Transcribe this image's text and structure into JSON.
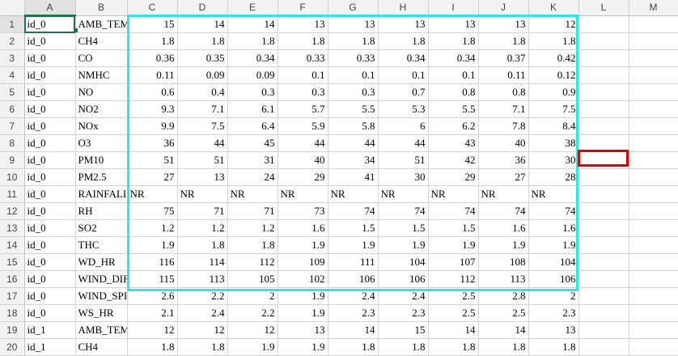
{
  "columns": [
    "A",
    "B",
    "C",
    "D",
    "E",
    "F",
    "G",
    "H",
    "I",
    "J",
    "K",
    "L",
    "M"
  ],
  "active_cell": "A1",
  "rows": [
    {
      "n": "1",
      "id": "id_0",
      "item": "AMB_TEM",
      "v": [
        "15",
        "14",
        "14",
        "13",
        "13",
        "13",
        "13",
        "13",
        "12"
      ]
    },
    {
      "n": "2",
      "id": "id_0",
      "item": "CH4",
      "v": [
        "1.8",
        "1.8",
        "1.8",
        "1.8",
        "1.8",
        "1.8",
        "1.8",
        "1.8",
        "1.8"
      ]
    },
    {
      "n": "3",
      "id": "id_0",
      "item": "CO",
      "v": [
        "0.36",
        "0.35",
        "0.34",
        "0.33",
        "0.33",
        "0.34",
        "0.34",
        "0.37",
        "0.42"
      ]
    },
    {
      "n": "4",
      "id": "id_0",
      "item": "NMHC",
      "v": [
        "0.11",
        "0.09",
        "0.09",
        "0.1",
        "0.1",
        "0.1",
        "0.1",
        "0.11",
        "0.12"
      ]
    },
    {
      "n": "5",
      "id": "id_0",
      "item": "NO",
      "v": [
        "0.6",
        "0.4",
        "0.3",
        "0.3",
        "0.3",
        "0.7",
        "0.8",
        "0.8",
        "0.9"
      ]
    },
    {
      "n": "6",
      "id": "id_0",
      "item": "NO2",
      "v": [
        "9.3",
        "7.1",
        "6.1",
        "5.7",
        "5.5",
        "5.3",
        "5.5",
        "7.1",
        "7.5"
      ]
    },
    {
      "n": "7",
      "id": "id_0",
      "item": "NOx",
      "v": [
        "9.9",
        "7.5",
        "6.4",
        "5.9",
        "5.8",
        "6",
        "6.2",
        "7.8",
        "8.4"
      ]
    },
    {
      "n": "8",
      "id": "id_0",
      "item": "O3",
      "v": [
        "36",
        "44",
        "45",
        "44",
        "44",
        "44",
        "43",
        "40",
        "38"
      ]
    },
    {
      "n": "9",
      "id": "id_0",
      "item": "PM10",
      "v": [
        "51",
        "51",
        "31",
        "40",
        "34",
        "51",
        "42",
        "36",
        "30"
      ]
    },
    {
      "n": "10",
      "id": "id_0",
      "item": "PM2.5",
      "v": [
        "27",
        "13",
        "24",
        "29",
        "41",
        "30",
        "29",
        "27",
        "28"
      ]
    },
    {
      "n": "11",
      "id": "id_0",
      "item": "RAINFALI",
      "v": [
        "NR",
        "NR",
        "NR",
        "NR",
        "NR",
        "NR",
        "NR",
        "NR",
        "NR"
      ]
    },
    {
      "n": "12",
      "id": "id_0",
      "item": "RH",
      "v": [
        "75",
        "71",
        "71",
        "73",
        "74",
        "74",
        "74",
        "74",
        "74"
      ]
    },
    {
      "n": "13",
      "id": "id_0",
      "item": "SO2",
      "v": [
        "1.2",
        "1.2",
        "1.2",
        "1.6",
        "1.5",
        "1.5",
        "1.5",
        "1.6",
        "1.6"
      ]
    },
    {
      "n": "14",
      "id": "id_0",
      "item": "THC",
      "v": [
        "1.9",
        "1.8",
        "1.8",
        "1.9",
        "1.9",
        "1.9",
        "1.9",
        "1.9",
        "1.9"
      ]
    },
    {
      "n": "15",
      "id": "id_0",
      "item": "WD_HR",
      "v": [
        "116",
        "114",
        "112",
        "109",
        "111",
        "104",
        "107",
        "108",
        "104"
      ]
    },
    {
      "n": "16",
      "id": "id_0",
      "item": "WIND_DIF",
      "v": [
        "115",
        "113",
        "105",
        "102",
        "106",
        "106",
        "112",
        "113",
        "106"
      ]
    },
    {
      "n": "17",
      "id": "id_0",
      "item": "WIND_SPI",
      "v": [
        "2.6",
        "2.2",
        "2",
        "1.9",
        "2.4",
        "2.4",
        "2.5",
        "2.8",
        "2"
      ]
    },
    {
      "n": "18",
      "id": "id_0",
      "item": "WS_HR",
      "v": [
        "2.1",
        "2.4",
        "2.2",
        "1.9",
        "2.3",
        "2.3",
        "2.5",
        "2.5",
        "2.3"
      ]
    },
    {
      "n": "19",
      "id": "id_1",
      "item": "AMB_TEM",
      "v": [
        "12",
        "12",
        "12",
        "13",
        "14",
        "15",
        "14",
        "14",
        "13"
      ]
    },
    {
      "n": "20",
      "id": "id_1",
      "item": "CH4",
      "v": [
        "1.8",
        "1.8",
        "1.9",
        "1.9",
        "1.8",
        "1.8",
        "1.8",
        "1.8",
        "1.8"
      ]
    }
  ]
}
